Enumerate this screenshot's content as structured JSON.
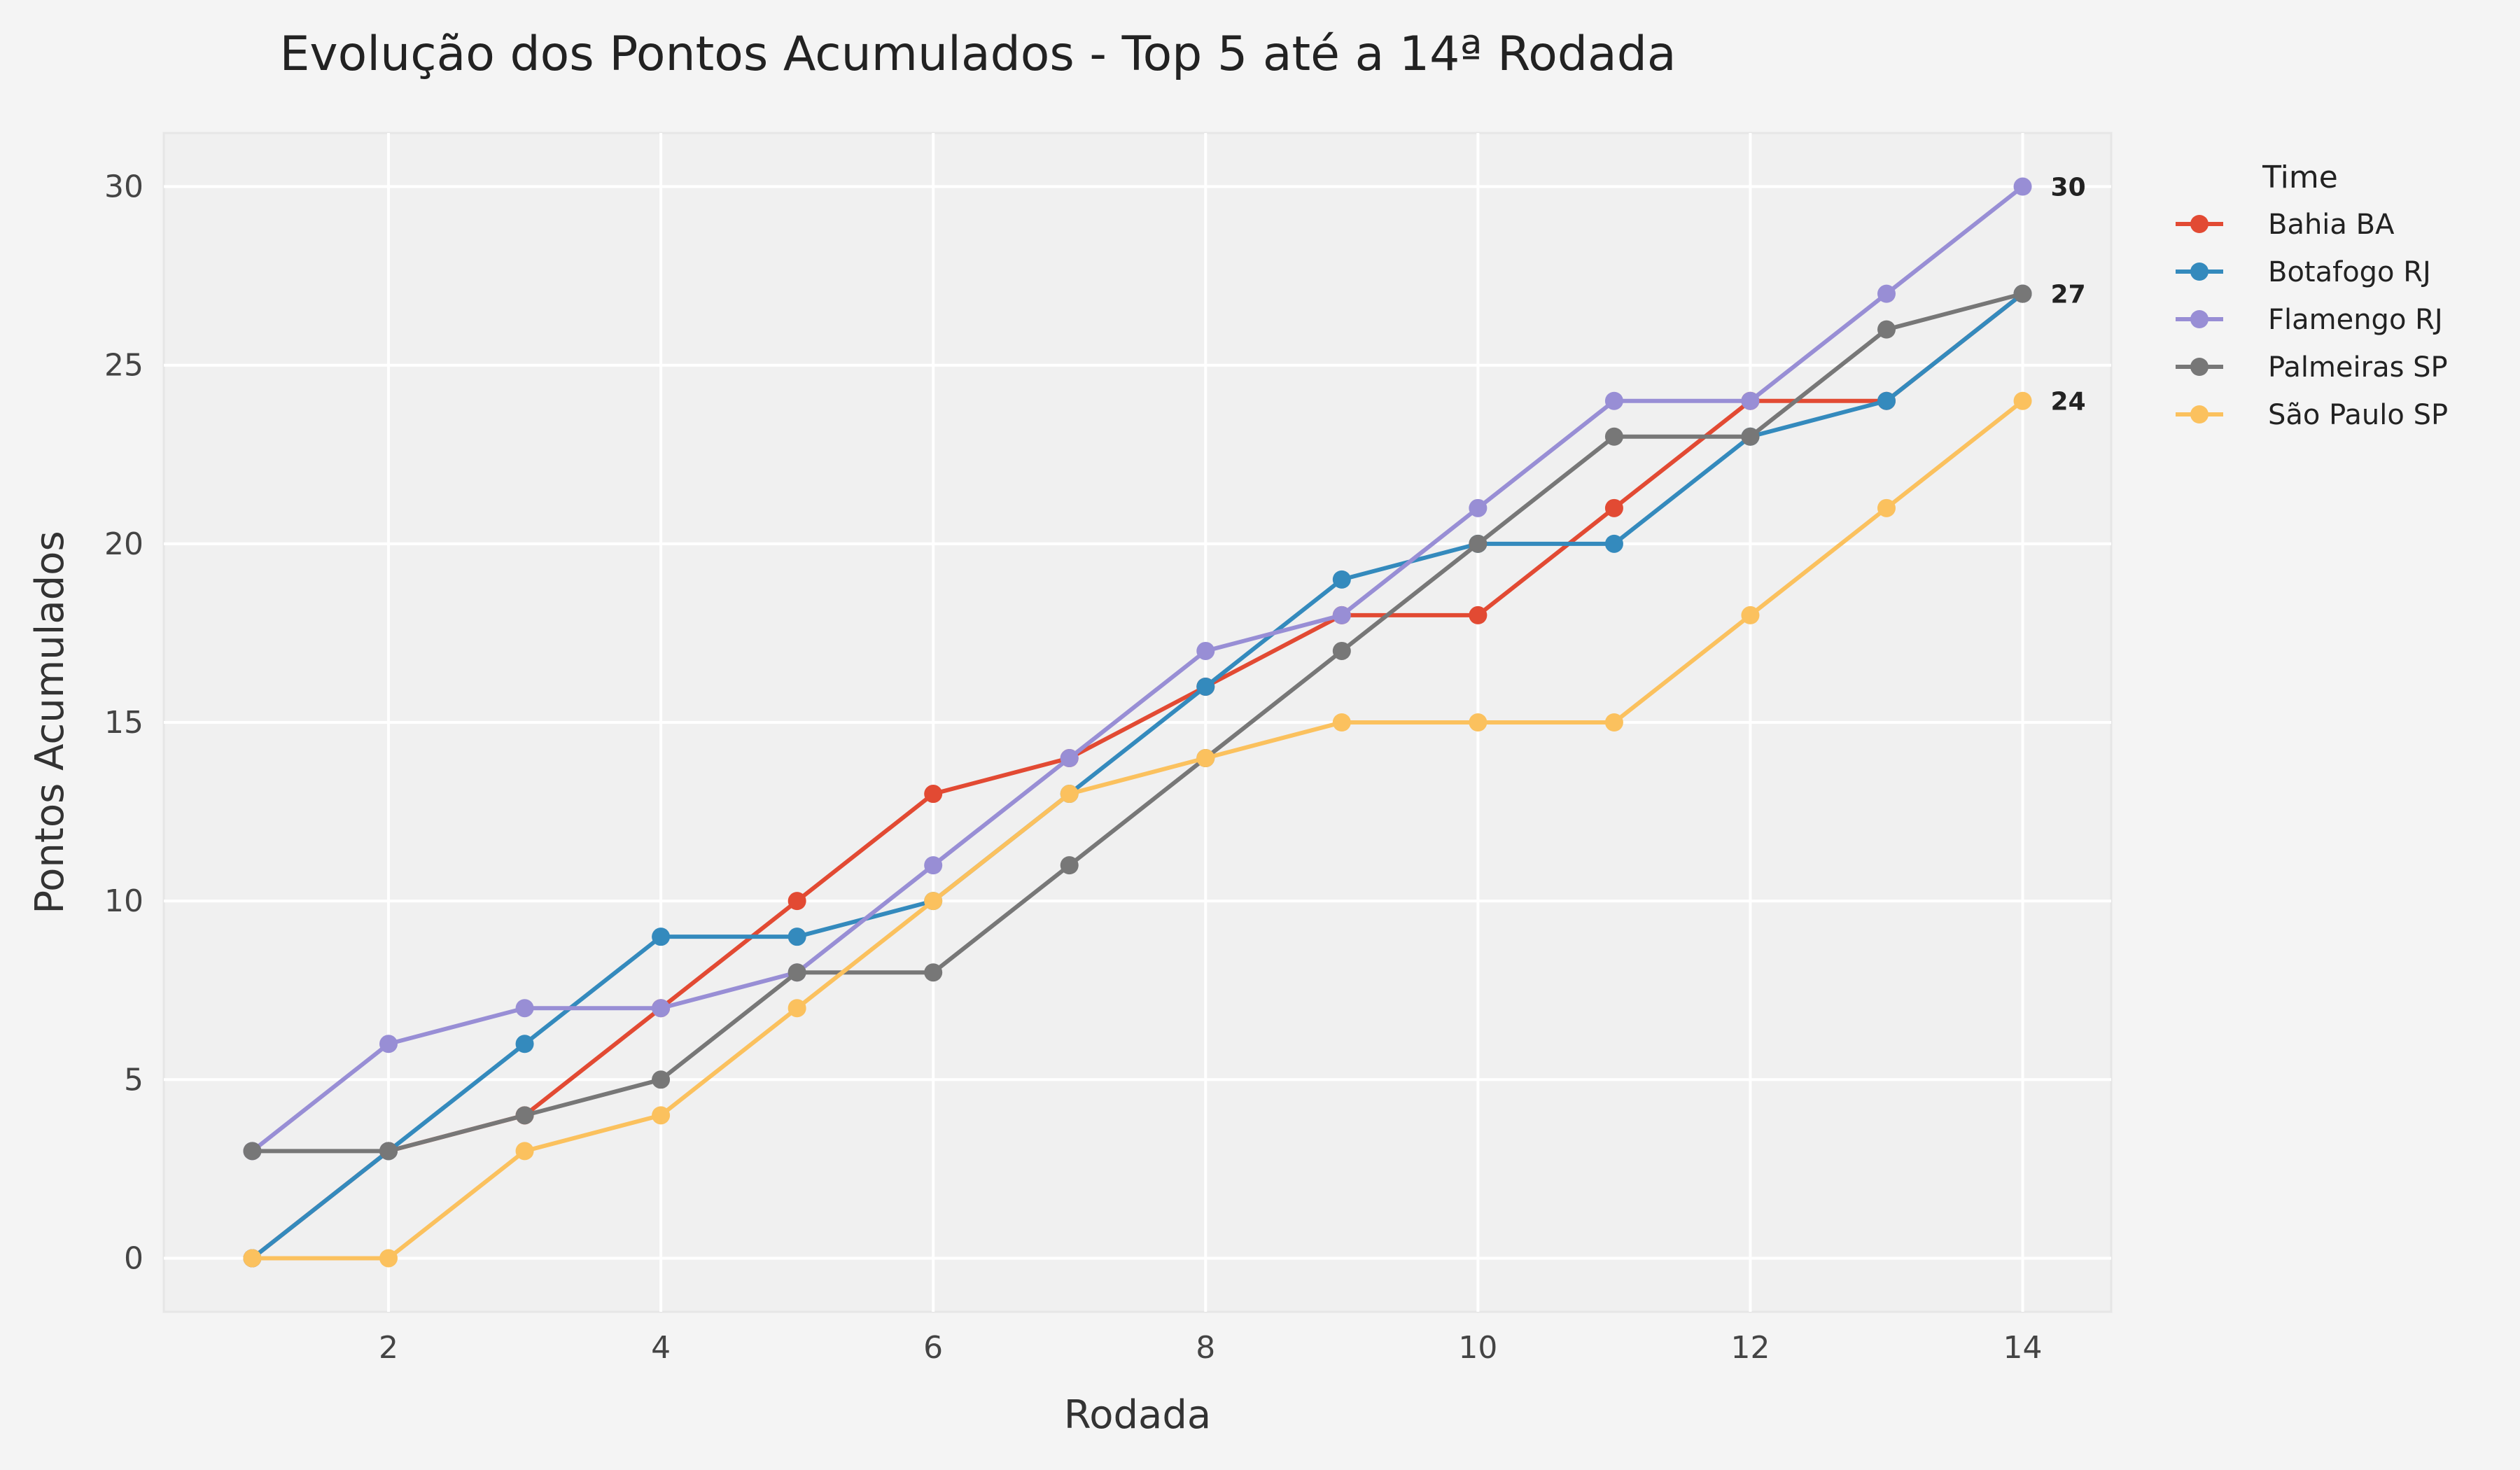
{
  "chart_data": {
    "type": "line",
    "title": "Evolução dos Pontos Acumulados - Top 5 até a 14ª Rodada",
    "xlabel": "Rodada",
    "ylabel": "Pontos Acumulados",
    "x": [
      1,
      2,
      3,
      4,
      5,
      6,
      7,
      8,
      9,
      10,
      11,
      12,
      13,
      14
    ],
    "xlim": [
      0.35,
      14.65
    ],
    "ylim": [
      -1.5,
      31.5
    ],
    "xticks": [
      2,
      4,
      6,
      8,
      10,
      12,
      14
    ],
    "yticks": [
      0,
      5,
      10,
      15,
      20,
      25,
      30
    ],
    "grid": true,
    "legend": {
      "title": "Time",
      "placement": "outside-top-right"
    },
    "series": [
      {
        "name": "Bahia BA",
        "color": "#e24a33",
        "values": [
          0,
          3,
          4,
          7,
          10,
          13,
          14,
          16,
          18,
          18,
          21,
          24,
          24,
          27
        ]
      },
      {
        "name": "Botafogo RJ",
        "color": "#348abd",
        "values": [
          0,
          3,
          6,
          9,
          9,
          10,
          13,
          16,
          19,
          20,
          20,
          23,
          24,
          27
        ]
      },
      {
        "name": "Flamengo RJ",
        "color": "#988ed5",
        "values": [
          3,
          6,
          7,
          7,
          8,
          11,
          14,
          17,
          18,
          21,
          24,
          24,
          27,
          30
        ]
      },
      {
        "name": "Palmeiras SP",
        "color": "#777777",
        "values": [
          3,
          3,
          4,
          5,
          8,
          8,
          11,
          14,
          17,
          20,
          23,
          23,
          26,
          27
        ]
      },
      {
        "name": "São Paulo SP",
        "color": "#fbc15e",
        "values": [
          0,
          0,
          3,
          4,
          7,
          10,
          13,
          14,
          15,
          15,
          15,
          18,
          21,
          24
        ]
      }
    ],
    "end_labels": [
      {
        "text": "30",
        "value": 30
      },
      {
        "text": "27",
        "value": 27
      },
      {
        "text": "24",
        "value": 24
      }
    ]
  }
}
